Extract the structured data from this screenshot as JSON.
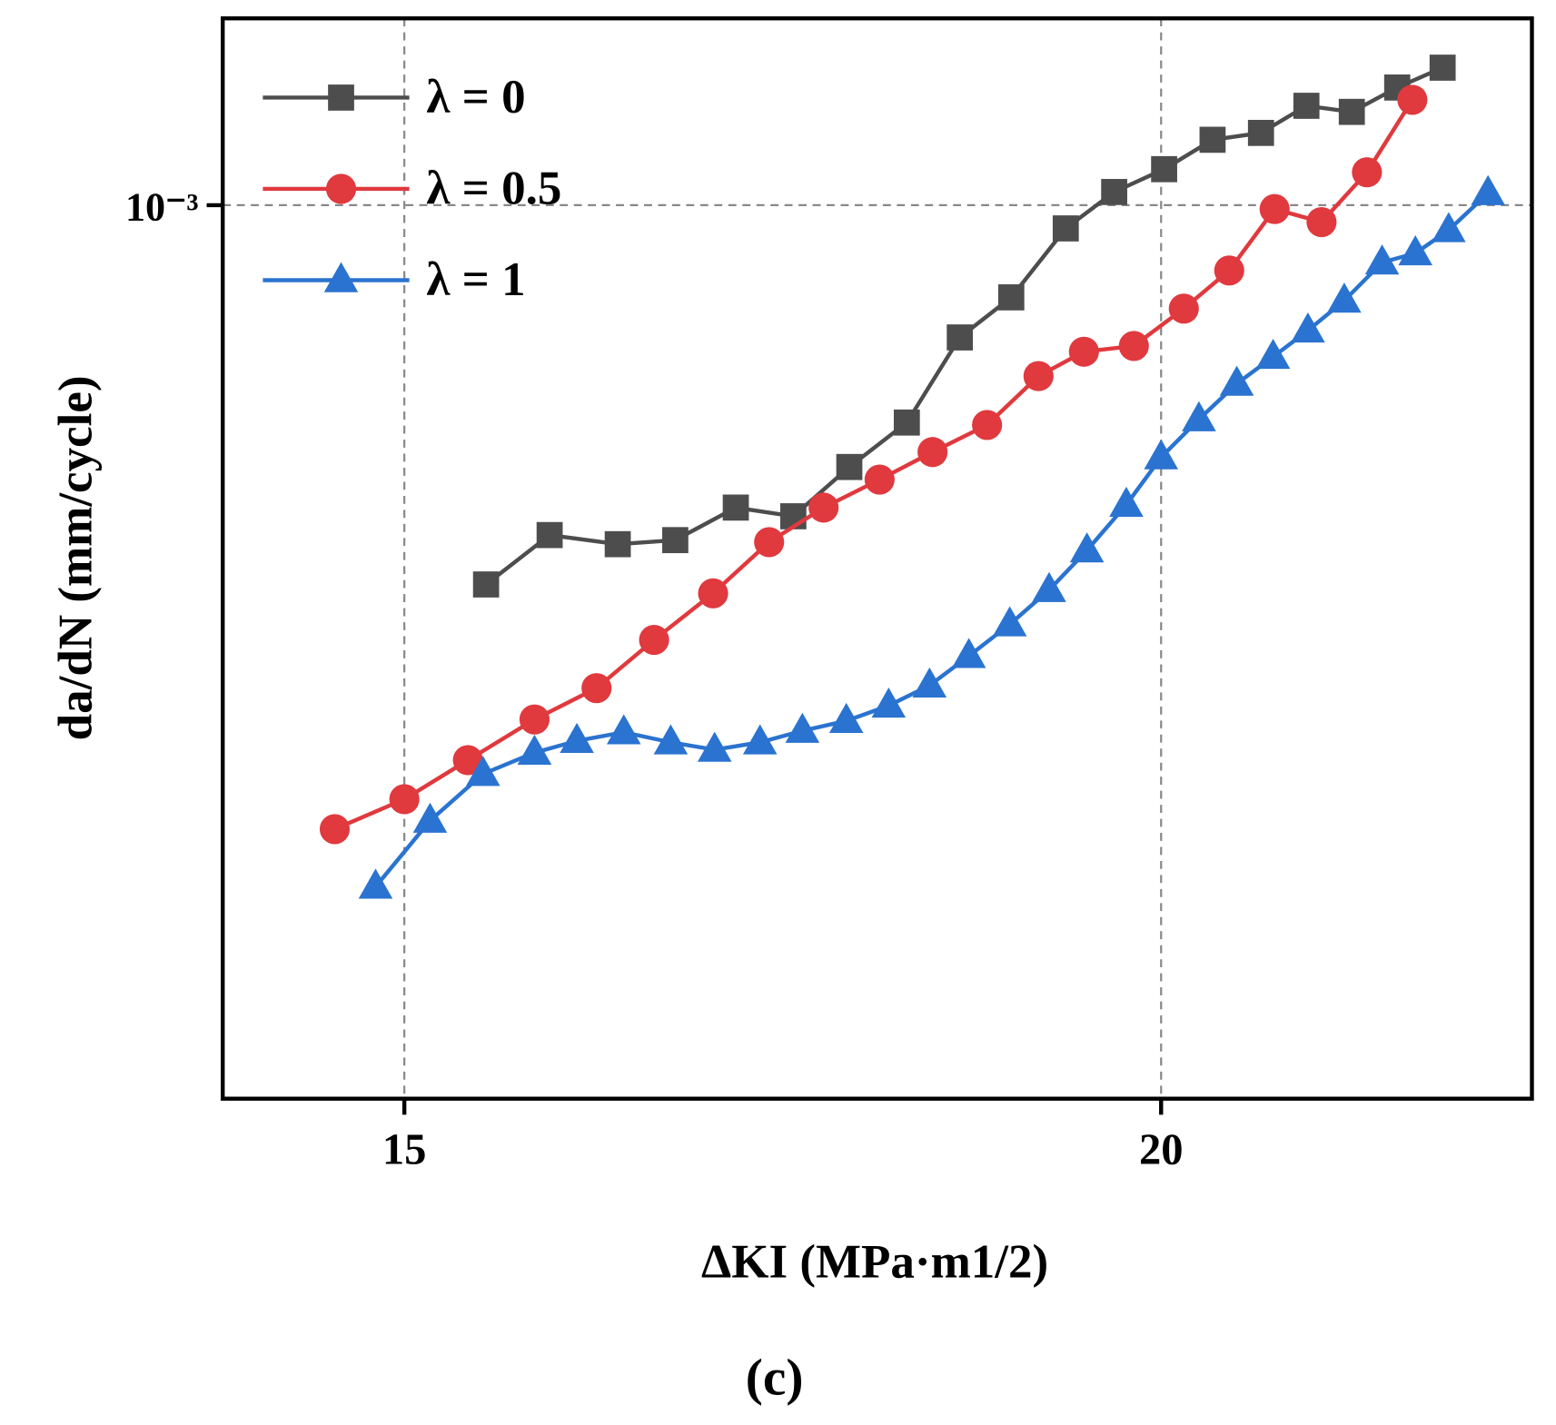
{
  "chart_data": {
    "type": "line",
    "title": "(c)",
    "x_label": "ΔKI (MPa·m1/2)",
    "y_label": "da/dN (mm/cycle)",
    "xlim": [
      13.8,
      22.45
    ],
    "xticks": [
      15,
      20
    ],
    "ylim": [
      0.0002,
      0.0014
    ],
    "yticks": [
      {
        "value": 0.001,
        "label": "10⁻³"
      }
    ],
    "log_y": true,
    "grid": true,
    "legend": "upper left",
    "series": [
      {
        "name": "λ = 0",
        "color": "#4d4d4d",
        "marker": "square",
        "x": [
          15.54,
          15.96,
          16.41,
          16.79,
          17.19,
          17.57,
          17.94,
          18.32,
          18.67,
          19.01,
          19.37,
          19.69,
          20.02,
          20.34,
          20.66,
          20.96,
          21.26,
          21.56,
          21.86
        ],
        "values": [
          0.000505,
          0.000552,
          0.000543,
          0.000547,
          0.00058,
          0.000571,
          0.000624,
          0.000676,
          0.000788,
          0.000847,
          0.000959,
          0.001024,
          0.001067,
          0.001125,
          0.001139,
          0.001196,
          0.001183,
          0.001236,
          0.001281
        ]
      },
      {
        "name": "λ = 0.5",
        "color": "#e0393e",
        "marker": "circle",
        "x": [
          14.54,
          15.0,
          15.42,
          15.86,
          16.27,
          16.65,
          17.04,
          17.41,
          17.77,
          18.14,
          18.49,
          18.85,
          19.19,
          19.49,
          19.82,
          20.15,
          20.45,
          20.75,
          21.06,
          21.36,
          21.66
        ],
        "values": [
          0.000325,
          0.000343,
          0.000368,
          0.000396,
          0.000419,
          0.000457,
          0.000497,
          0.000545,
          0.00058,
          0.00061,
          0.000641,
          0.000673,
          0.000735,
          0.000768,
          0.000776,
          0.00083,
          0.000889,
          0.000993,
          0.00097,
          0.001061,
          0.001209
        ]
      },
      {
        "name": "λ = 1",
        "color": "#2a73d0",
        "marker": "triangle",
        "x": [
          14.81,
          15.17,
          15.52,
          15.86,
          16.14,
          16.45,
          16.76,
          17.05,
          17.35,
          17.63,
          17.92,
          18.2,
          18.47,
          18.73,
          19.0,
          19.26,
          19.51,
          19.77,
          20.0,
          20.25,
          20.5,
          20.74,
          20.97,
          21.21,
          21.46,
          21.68,
          21.9,
          22.16
        ],
        "values": [
          0.000293,
          0.00033,
          0.000359,
          0.000373,
          0.000381,
          0.000387,
          0.00038,
          0.000375,
          0.00038,
          0.000388,
          0.000395,
          0.000406,
          0.000421,
          0.000444,
          0.00047,
          0.0005,
          0.000537,
          0.000583,
          0.000635,
          0.00068,
          0.000725,
          0.000761,
          0.000798,
          0.000842,
          0.000902,
          0.000917,
          0.000956,
          0.001022
        ]
      }
    ]
  }
}
